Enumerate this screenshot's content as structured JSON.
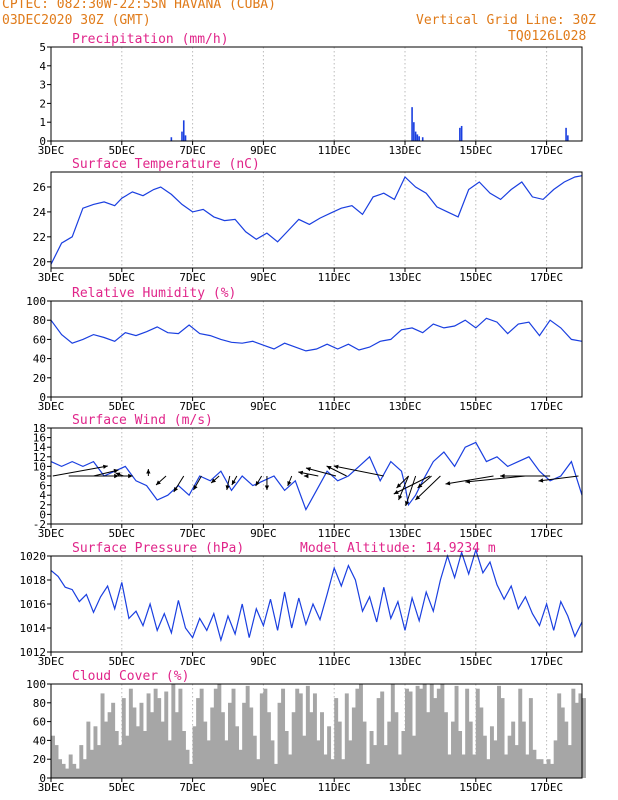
{
  "header": {
    "line1": "CPTEC:   082:30W-22:55N   HAVANA (CUBA)",
    "line2": "03DEC2020 30Z (GMT)",
    "right1": "Vertical Grid Line: 30Z",
    "right2": "TQ0126L028"
  },
  "colors": {
    "series": "#1a3fe0",
    "title": "#e0258a",
    "header": "#e07b1a",
    "cloud": "#a6a6a6"
  },
  "x_axis": {
    "range": [
      3,
      18
    ],
    "ticks": [
      3,
      5,
      7,
      9,
      11,
      13,
      15,
      17
    ],
    "labels": [
      "3DEC",
      "5DEC",
      "7DEC",
      "9DEC",
      "11DEC",
      "13DEC",
      "15DEC",
      "17DEC"
    ]
  },
  "chart_data": [
    {
      "type": "bar",
      "title": "Precipitation (mm/h)",
      "ylim": [
        0,
        5
      ],
      "yticks": [
        0,
        1,
        2,
        3,
        4,
        5
      ],
      "x": [
        6.4,
        6.7,
        6.75,
        6.8,
        13.2,
        13.25,
        13.3,
        13.35,
        13.4,
        13.5,
        14.55,
        14.6,
        17.55,
        17.6
      ],
      "values": [
        0.2,
        0.5,
        1.1,
        0.3,
        1.8,
        1.0,
        0.5,
        0.35,
        0.25,
        0.2,
        0.7,
        0.8,
        0.7,
        0.3
      ]
    },
    {
      "type": "line",
      "title": "Surface Temperature (nC)",
      "ylim": [
        19.5,
        27.2
      ],
      "yticks": [
        20,
        22,
        24,
        26
      ],
      "x": [
        3,
        3.3,
        3.6,
        3.9,
        4.2,
        4.5,
        4.8,
        5.0,
        5.3,
        5.6,
        5.9,
        6.1,
        6.4,
        6.7,
        7.0,
        7.3,
        7.6,
        7.9,
        8.2,
        8.5,
        8.8,
        9.1,
        9.4,
        9.7,
        10.0,
        10.3,
        10.6,
        10.9,
        11.2,
        11.5,
        11.8,
        12.1,
        12.4,
        12.7,
        13.0,
        13.3,
        13.6,
        13.9,
        14.2,
        14.5,
        14.8,
        15.1,
        15.4,
        15.7,
        16.0,
        16.3,
        16.6,
        16.9,
        17.2,
        17.5,
        17.8,
        18.0
      ],
      "values": [
        19.8,
        21.5,
        22.0,
        24.3,
        24.6,
        24.8,
        24.5,
        25.1,
        25.6,
        25.3,
        25.8,
        26.0,
        25.4,
        24.6,
        24.0,
        24.2,
        23.6,
        23.3,
        23.4,
        22.4,
        21.8,
        22.3,
        21.6,
        22.5,
        23.4,
        23.0,
        23.5,
        23.9,
        24.3,
        24.5,
        23.8,
        25.2,
        25.5,
        25.0,
        26.8,
        26.0,
        25.5,
        24.4,
        24.0,
        23.6,
        25.8,
        26.4,
        25.5,
        25.0,
        25.8,
        26.4,
        25.2,
        25.0,
        25.8,
        26.4,
        26.8,
        26.9
      ]
    },
    {
      "type": "line",
      "title": "Relative Humidity (%)",
      "ylim": [
        0,
        100
      ],
      "yticks": [
        0,
        20,
        40,
        60,
        80,
        100
      ],
      "x": [
        3,
        3.3,
        3.6,
        3.9,
        4.2,
        4.5,
        4.8,
        5.1,
        5.4,
        5.7,
        6.0,
        6.3,
        6.6,
        6.9,
        7.2,
        7.5,
        7.8,
        8.1,
        8.4,
        8.7,
        9.0,
        9.3,
        9.6,
        9.9,
        10.2,
        10.5,
        10.8,
        11.1,
        11.4,
        11.7,
        12.0,
        12.3,
        12.6,
        12.9,
        13.2,
        13.5,
        13.8,
        14.1,
        14.4,
        14.7,
        15.0,
        15.3,
        15.6,
        15.9,
        16.2,
        16.5,
        16.8,
        17.1,
        17.4,
        17.7,
        18.0
      ],
      "values": [
        80,
        65,
        56,
        60,
        65,
        62,
        58,
        67,
        64,
        68,
        73,
        67,
        66,
        75,
        66,
        64,
        60,
        57,
        56,
        58,
        54,
        50,
        56,
        52,
        48,
        50,
        55,
        50,
        55,
        49,
        52,
        58,
        60,
        70,
        72,
        67,
        76,
        72,
        74,
        80,
        72,
        82,
        78,
        66,
        76,
        78,
        64,
        80,
        72,
        60,
        58
      ]
    },
    {
      "type": "line",
      "title": "Surface Wind (m/s)",
      "ylim": [
        -2,
        18
      ],
      "yticks": [
        -2,
        0,
        2,
        4,
        6,
        8,
        10,
        12,
        14,
        16,
        18
      ],
      "x": [
        3,
        3.3,
        3.6,
        3.9,
        4.2,
        4.5,
        4.8,
        5.1,
        5.4,
        5.7,
        6.0,
        6.3,
        6.6,
        6.9,
        7.2,
        7.5,
        7.8,
        8.1,
        8.4,
        8.7,
        9.0,
        9.3,
        9.6,
        9.9,
        10.2,
        10.5,
        10.8,
        11.1,
        11.4,
        11.7,
        12.0,
        12.3,
        12.6,
        12.9,
        13.0,
        13.1,
        13.3,
        13.5,
        13.8,
        14.1,
        14.4,
        14.7,
        15.0,
        15.3,
        15.6,
        15.9,
        16.2,
        16.5,
        16.8,
        17.1,
        17.4,
        17.7,
        18.0
      ],
      "values": [
        11,
        10,
        11,
        10,
        11,
        8,
        9,
        10,
        7,
        6,
        3,
        4,
        6,
        4,
        8,
        7,
        9,
        5,
        8,
        6,
        7,
        8,
        5,
        7,
        1,
        5,
        9,
        7,
        8,
        10,
        12,
        7,
        11,
        9,
        6,
        2,
        4,
        7,
        11,
        13,
        10,
        14,
        15,
        11,
        12,
        10,
        11,
        12,
        9,
        7,
        8,
        11,
        4
      ],
      "arrows": [
        {
          "x": 3.05,
          "dx": 55,
          "dy": -10
        },
        {
          "x": 3.5,
          "dx": 50,
          "dy": 0
        },
        {
          "x": 4.2,
          "dx": 25,
          "dy": -6
        },
        {
          "x": 4.8,
          "dx": 18,
          "dy": 0
        },
        {
          "x": 5.05,
          "dx": -8,
          "dy": -3
        },
        {
          "x": 5.75,
          "dx": 0,
          "dy": -7
        },
        {
          "x": 6.25,
          "dx": -10,
          "dy": 9
        },
        {
          "x": 6.75,
          "dx": -10,
          "dy": 16
        },
        {
          "x": 7.25,
          "dx": -8,
          "dy": 14
        },
        {
          "x": 7.75,
          "dx": -8,
          "dy": 7
        },
        {
          "x": 8.05,
          "dx": -3,
          "dy": 14
        },
        {
          "x": 8.25,
          "dx": -5,
          "dy": 9
        },
        {
          "x": 8.95,
          "dx": -6,
          "dy": 10
        },
        {
          "x": 9.1,
          "dx": 0,
          "dy": 14
        },
        {
          "x": 9.8,
          "dx": -4,
          "dy": 10
        },
        {
          "x": 10.2,
          "dx": -2,
          "dy": 0
        },
        {
          "x": 10.55,
          "dx": -20,
          "dy": -4
        },
        {
          "x": 11.05,
          "dx": -30,
          "dy": -8
        },
        {
          "x": 11.35,
          "dx": -20,
          "dy": -10
        },
        {
          "x": 12.4,
          "dx": -50,
          "dy": -10
        },
        {
          "x": 13.1,
          "dx": -12,
          "dy": 12
        },
        {
          "x": 13.1,
          "dx": -10,
          "dy": 24
        },
        {
          "x": 13.3,
          "dx": -10,
          "dy": 30
        },
        {
          "x": 13.75,
          "dx": -14,
          "dy": 12
        },
        {
          "x": 13.7,
          "dx": -36,
          "dy": 18
        },
        {
          "x": 14.0,
          "dx": -25,
          "dy": 24
        },
        {
          "x": 15.5,
          "dx": -48,
          "dy": 8
        },
        {
          "x": 16.4,
          "dx": -60,
          "dy": 6
        },
        {
          "x": 17.1,
          "dx": -50,
          "dy": 0
        },
        {
          "x": 17.9,
          "dx": -40,
          "dy": 5
        }
      ]
    },
    {
      "type": "line",
      "title": "Surface Pressure (hPa)",
      "annotation": "Model Altitude: 14.9234  m",
      "ylim": [
        1012,
        1020
      ],
      "yticks": [
        1012,
        1014,
        1016,
        1018,
        1020
      ],
      "x": [
        3,
        3.2,
        3.4,
        3.6,
        3.8,
        4.0,
        4.2,
        4.4,
        4.6,
        4.8,
        5.0,
        5.2,
        5.4,
        5.6,
        5.8,
        6.0,
        6.2,
        6.4,
        6.6,
        6.8,
        7.0,
        7.2,
        7.4,
        7.6,
        7.8,
        8.0,
        8.2,
        8.4,
        8.6,
        8.8,
        9.0,
        9.2,
        9.4,
        9.6,
        9.8,
        10.0,
        10.2,
        10.4,
        10.6,
        10.8,
        11.0,
        11.2,
        11.4,
        11.6,
        11.8,
        12.0,
        12.2,
        12.4,
        12.6,
        12.8,
        13.0,
        13.2,
        13.4,
        13.6,
        13.8,
        14.0,
        14.2,
        14.4,
        14.6,
        14.8,
        15.0,
        15.2,
        15.4,
        15.6,
        15.8,
        16.0,
        16.2,
        16.4,
        16.6,
        16.8,
        17.0,
        17.2,
        17.4,
        17.6,
        17.8,
        18.0
      ],
      "values": [
        1018.8,
        1018.3,
        1017.4,
        1017.2,
        1016.2,
        1016.8,
        1015.3,
        1016.6,
        1017.5,
        1015.6,
        1017.8,
        1014.8,
        1015.4,
        1014.2,
        1016.0,
        1013.8,
        1015.2,
        1013.6,
        1016.3,
        1014.0,
        1013.2,
        1014.8,
        1013.8,
        1015.2,
        1013.0,
        1015.0,
        1013.5,
        1016.0,
        1013.2,
        1015.6,
        1014.2,
        1016.4,
        1013.8,
        1017.0,
        1014.0,
        1016.5,
        1014.3,
        1016.0,
        1014.7,
        1016.8,
        1019.0,
        1017.5,
        1019.2,
        1018.0,
        1015.4,
        1016.6,
        1014.5,
        1017.4,
        1014.8,
        1016.2,
        1013.8,
        1016.5,
        1014.6,
        1017.0,
        1015.4,
        1018.0,
        1020.0,
        1018.2,
        1020.3,
        1018.5,
        1020.5,
        1018.6,
        1019.5,
        1017.6,
        1016.4,
        1017.5,
        1015.6,
        1016.6,
        1015.2,
        1014.2,
        1016.0,
        1013.8,
        1016.2,
        1015.0,
        1013.3,
        1014.5
      ]
    },
    {
      "type": "area",
      "title": "Cloud Cover (%)",
      "ylim": [
        0,
        100
      ],
      "yticks": [
        0,
        20,
        40,
        60,
        80,
        100
      ],
      "x": [
        3,
        3.1,
        3.2,
        3.3,
        3.4,
        3.5,
        3.6,
        3.7,
        3.8,
        3.9,
        4.0,
        4.1,
        4.2,
        4.3,
        4.4,
        4.5,
        4.6,
        4.7,
        4.8,
        4.9,
        5.0,
        5.1,
        5.2,
        5.3,
        5.4,
        5.5,
        5.6,
        5.7,
        5.8,
        5.9,
        6.0,
        6.1,
        6.2,
        6.3,
        6.4,
        6.5,
        6.6,
        6.7,
        6.8,
        6.9,
        7.0,
        7.1,
        7.2,
        7.3,
        7.4,
        7.5,
        7.6,
        7.7,
        7.8,
        7.9,
        8.0,
        8.1,
        8.2,
        8.3,
        8.4,
        8.5,
        8.6,
        8.7,
        8.8,
        8.9,
        9.0,
        9.1,
        9.2,
        9.3,
        9.4,
        9.5,
        9.6,
        9.7,
        9.8,
        9.9,
        10.0,
        10.1,
        10.2,
        10.3,
        10.4,
        10.5,
        10.6,
        10.7,
        10.8,
        10.9,
        11.0,
        11.1,
        11.2,
        11.3,
        11.4,
        11.5,
        11.6,
        11.7,
        11.8,
        11.9,
        12.0,
        12.1,
        12.2,
        12.3,
        12.4,
        12.5,
        12.6,
        12.7,
        12.8,
        12.9,
        13.0,
        13.1,
        13.2,
        13.3,
        13.4,
        13.5,
        13.6,
        13.7,
        13.8,
        13.9,
        14.0,
        14.1,
        14.2,
        14.3,
        14.4,
        14.5,
        14.6,
        14.7,
        14.8,
        14.9,
        15.0,
        15.1,
        15.2,
        15.3,
        15.4,
        15.5,
        15.6,
        15.7,
        15.8,
        15.9,
        16.0,
        16.1,
        16.2,
        16.3,
        16.4,
        16.5,
        16.6,
        16.7,
        16.8,
        16.9,
        17.0,
        17.1,
        17.2,
        17.3,
        17.4,
        17.5,
        17.6,
        17.7,
        17.8,
        17.9,
        18.0
      ],
      "values": [
        45,
        35,
        20,
        15,
        10,
        25,
        15,
        10,
        35,
        20,
        60,
        30,
        55,
        35,
        90,
        60,
        70,
        80,
        50,
        35,
        85,
        45,
        95,
        75,
        55,
        80,
        50,
        90,
        70,
        95,
        85,
        60,
        92,
        40,
        100,
        70,
        95,
        50,
        30,
        15,
        55,
        85,
        95,
        60,
        40,
        75,
        95,
        100,
        70,
        40,
        80,
        95,
        55,
        30,
        80,
        98,
        75,
        45,
        20,
        90,
        95,
        70,
        40,
        15,
        80,
        95,
        50,
        25,
        70,
        95,
        90,
        45,
        98,
        70,
        90,
        40,
        70,
        25,
        55,
        20,
        85,
        60,
        20,
        90,
        40,
        75,
        95,
        100,
        60,
        15,
        50,
        35,
        85,
        92,
        35,
        60,
        100,
        70,
        25,
        50,
        95,
        92,
        45,
        98,
        95,
        100,
        70,
        100,
        85,
        95,
        100,
        70,
        25,
        60,
        98,
        50,
        25,
        95,
        60,
        25,
        95,
        75,
        45,
        20,
        55,
        40,
        98,
        85,
        25,
        45,
        60,
        35,
        95,
        60,
        25,
        85,
        30,
        20,
        20,
        15,
        20,
        15,
        40,
        90,
        75,
        60,
        35,
        95,
        80,
        90,
        85
      ]
    }
  ]
}
